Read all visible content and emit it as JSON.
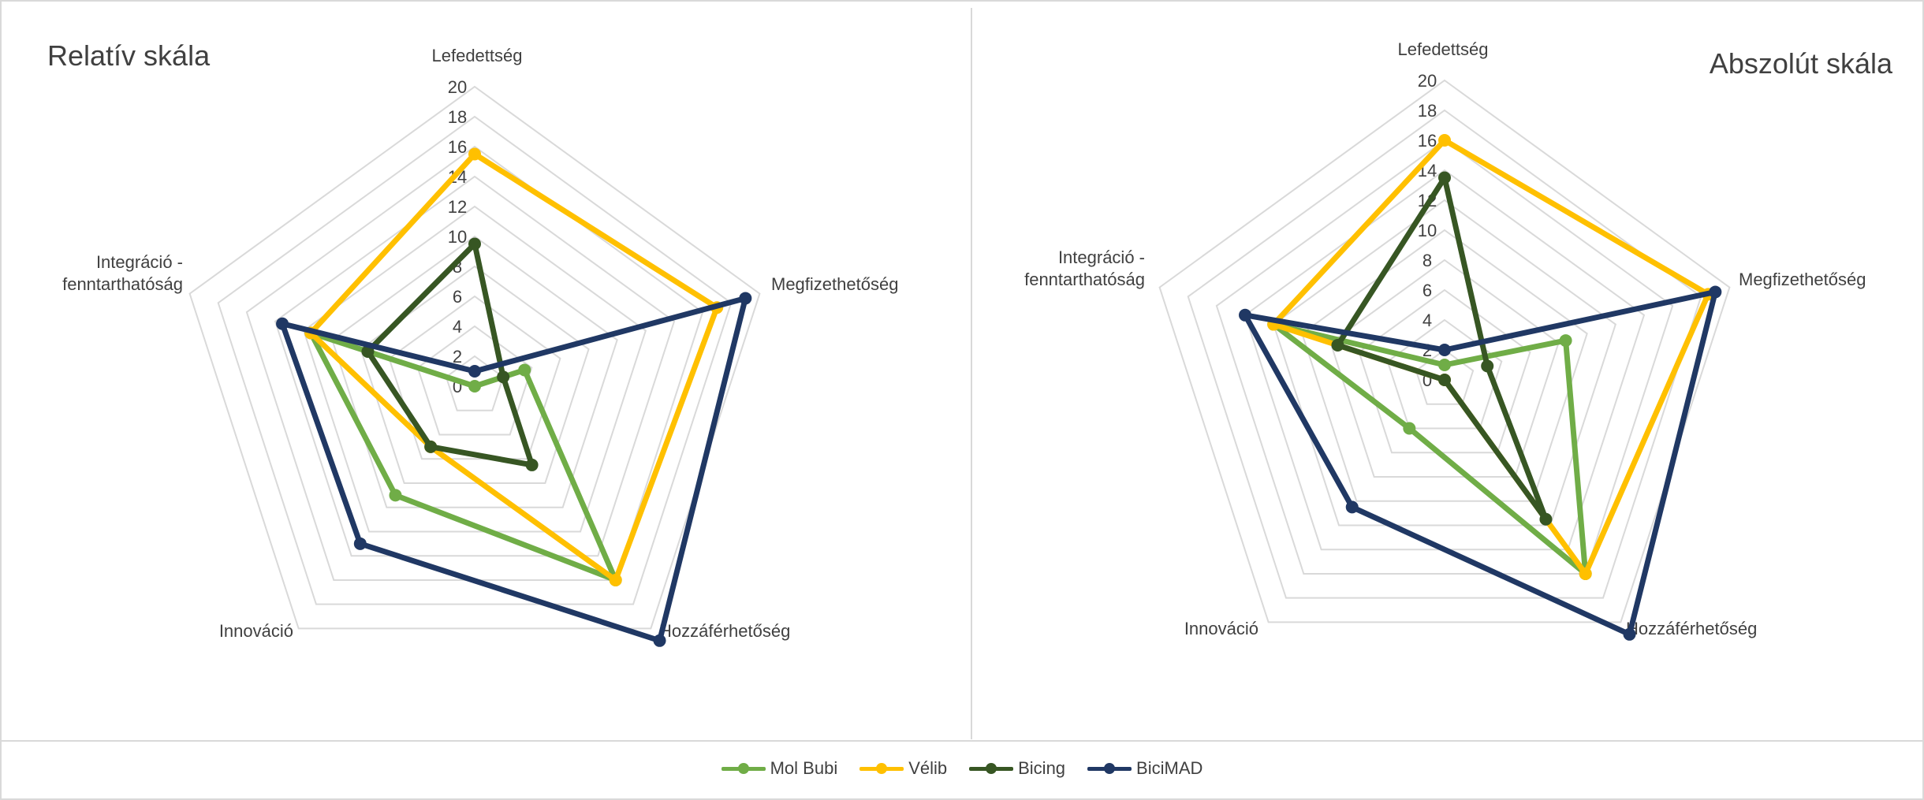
{
  "chart_data": [
    {
      "type": "radar",
      "title": "Relatív skála",
      "axes": [
        "Lefedettség",
        "Megfizethetőség",
        "Hozzáférhetőség",
        "Innováció",
        "Integráció - fenntarthatóság"
      ],
      "rlim": [
        0,
        20
      ],
      "ticks": [
        "0",
        "2",
        "4",
        "6",
        "8",
        "10",
        "12",
        "14",
        "16",
        "18",
        "20"
      ],
      "grid": true,
      "series": [
        {
          "name": "Mol Bubi",
          "values": [
            0,
            3.5,
            16,
            9,
            11.5
          ]
        },
        {
          "name": "Vélib",
          "values": [
            15.5,
            17,
            16,
            5,
            11.5
          ]
        },
        {
          "name": "Bicing",
          "values": [
            9.5,
            2,
            6.5,
            5,
            7.5
          ]
        },
        {
          "name": "BiciMAD",
          "values": [
            1,
            19,
            21,
            13,
            13.5
          ]
        }
      ]
    },
    {
      "type": "radar",
      "title": "Abszolút skála",
      "axes": [
        "Lefedettség",
        "Megfizethetőség",
        "Hozzáférhetőség",
        "Innováció",
        "Integráció - fenntarthatóság"
      ],
      "rlim": [
        0,
        20
      ],
      "ticks": [
        "0",
        "2",
        "4",
        "6",
        "8",
        "10",
        "12",
        "14",
        "16",
        "18",
        "20"
      ],
      "grid": true,
      "series": [
        {
          "name": "Mol Bubi",
          "values": [
            1,
            8.5,
            16,
            4,
            12
          ]
        },
        {
          "name": "Vélib",
          "values": [
            16,
            18.5,
            16,
            0,
            12
          ]
        },
        {
          "name": "Bicing",
          "values": [
            13.5,
            3,
            11.5,
            0,
            7.5
          ]
        },
        {
          "name": "BiciMAD",
          "values": [
            2,
            19,
            21,
            10.5,
            14
          ]
        }
      ]
    }
  ],
  "legend": {
    "position": "bottom",
    "items": [
      {
        "name": "Mol Bubi",
        "color": "#70ad47"
      },
      {
        "name": "Vélib",
        "color": "#ffc000"
      },
      {
        "name": "Bicing",
        "color": "#375623"
      },
      {
        "name": "BiciMAD",
        "color": "#203864"
      }
    ]
  },
  "colors": {
    "grid": "#d9d9d9",
    "text": "#404040",
    "frame": "#d9d9d9"
  }
}
